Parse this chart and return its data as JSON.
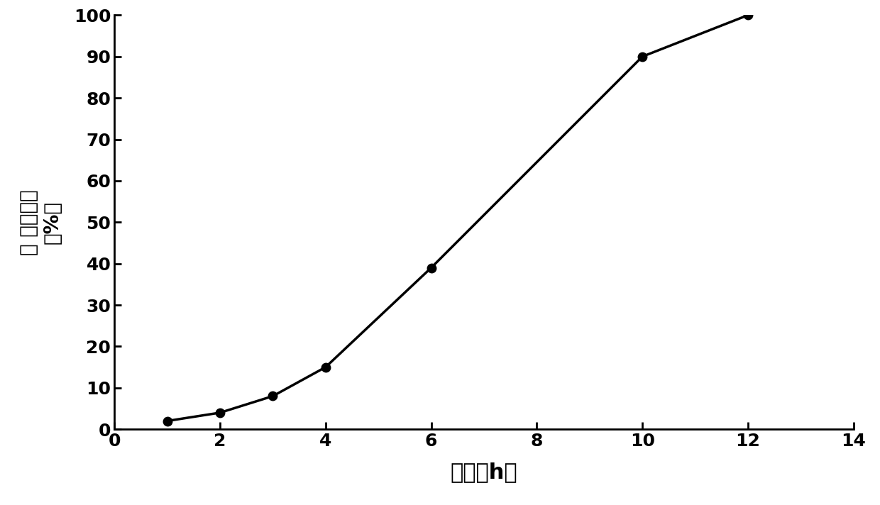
{
  "x": [
    1,
    2,
    3,
    4,
    6,
    10,
    12
  ],
  "y": [
    2,
    4,
    8,
    15,
    39,
    90,
    100
  ],
  "xlabel": "时间（h）",
  "ylabel_chars": [
    "累",
    "积释放率",
    "（%）"
  ],
  "ylabel_line1": "累 积释放率",
  "ylabel_line2": "（%）",
  "xlim": [
    0,
    14
  ],
  "ylim": [
    0,
    100
  ],
  "xticks": [
    0,
    2,
    4,
    6,
    8,
    10,
    12,
    14
  ],
  "yticks": [
    0,
    10,
    20,
    30,
    40,
    50,
    60,
    70,
    80,
    90,
    100
  ],
  "line_color": "#000000",
  "marker": "o",
  "marker_size": 9,
  "line_width": 2.5,
  "background_color": "#ffffff",
  "xlabel_fontsize": 22,
  "ylabel_fontsize": 20,
  "tick_fontsize": 18
}
